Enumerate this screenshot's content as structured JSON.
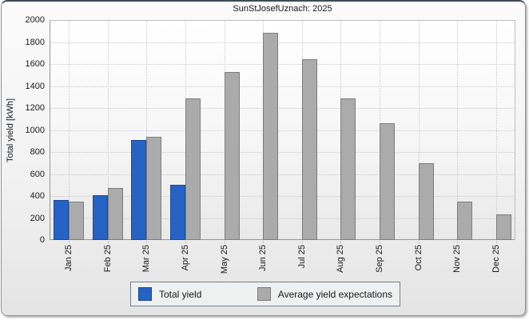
{
  "chart_data": {
    "type": "bar",
    "title": "SunStJosefUznach: 2025",
    "xlabel": "",
    "ylabel": "Total yield [kWh]",
    "ylim": [
      0,
      2000
    ],
    "ytick_step": 200,
    "grid": true,
    "grid_color": "#c9c9c9",
    "legend_position": "bottom-center",
    "categories": [
      "Jan 25",
      "Feb 25",
      "Mar 25",
      "Apr 25",
      "May 25",
      "Jun 25",
      "Jul 25",
      "Aug 25",
      "Sep 25",
      "Oct 25",
      "Nov 25",
      "Dec 25"
    ],
    "series": [
      {
        "name": "Total yield",
        "color": "#2663c4",
        "border_color": "#1b4a94",
        "values": [
          360,
          410,
          910,
          500,
          null,
          null,
          null,
          null,
          null,
          null,
          null,
          null
        ]
      },
      {
        "name": "Average yield expectations",
        "color": "#ababab",
        "border_color": "#7d7d7d",
        "values": [
          350,
          470,
          940,
          1290,
          1530,
          1880,
          1640,
          1290,
          1060,
          700,
          350,
          230
        ]
      }
    ]
  }
}
